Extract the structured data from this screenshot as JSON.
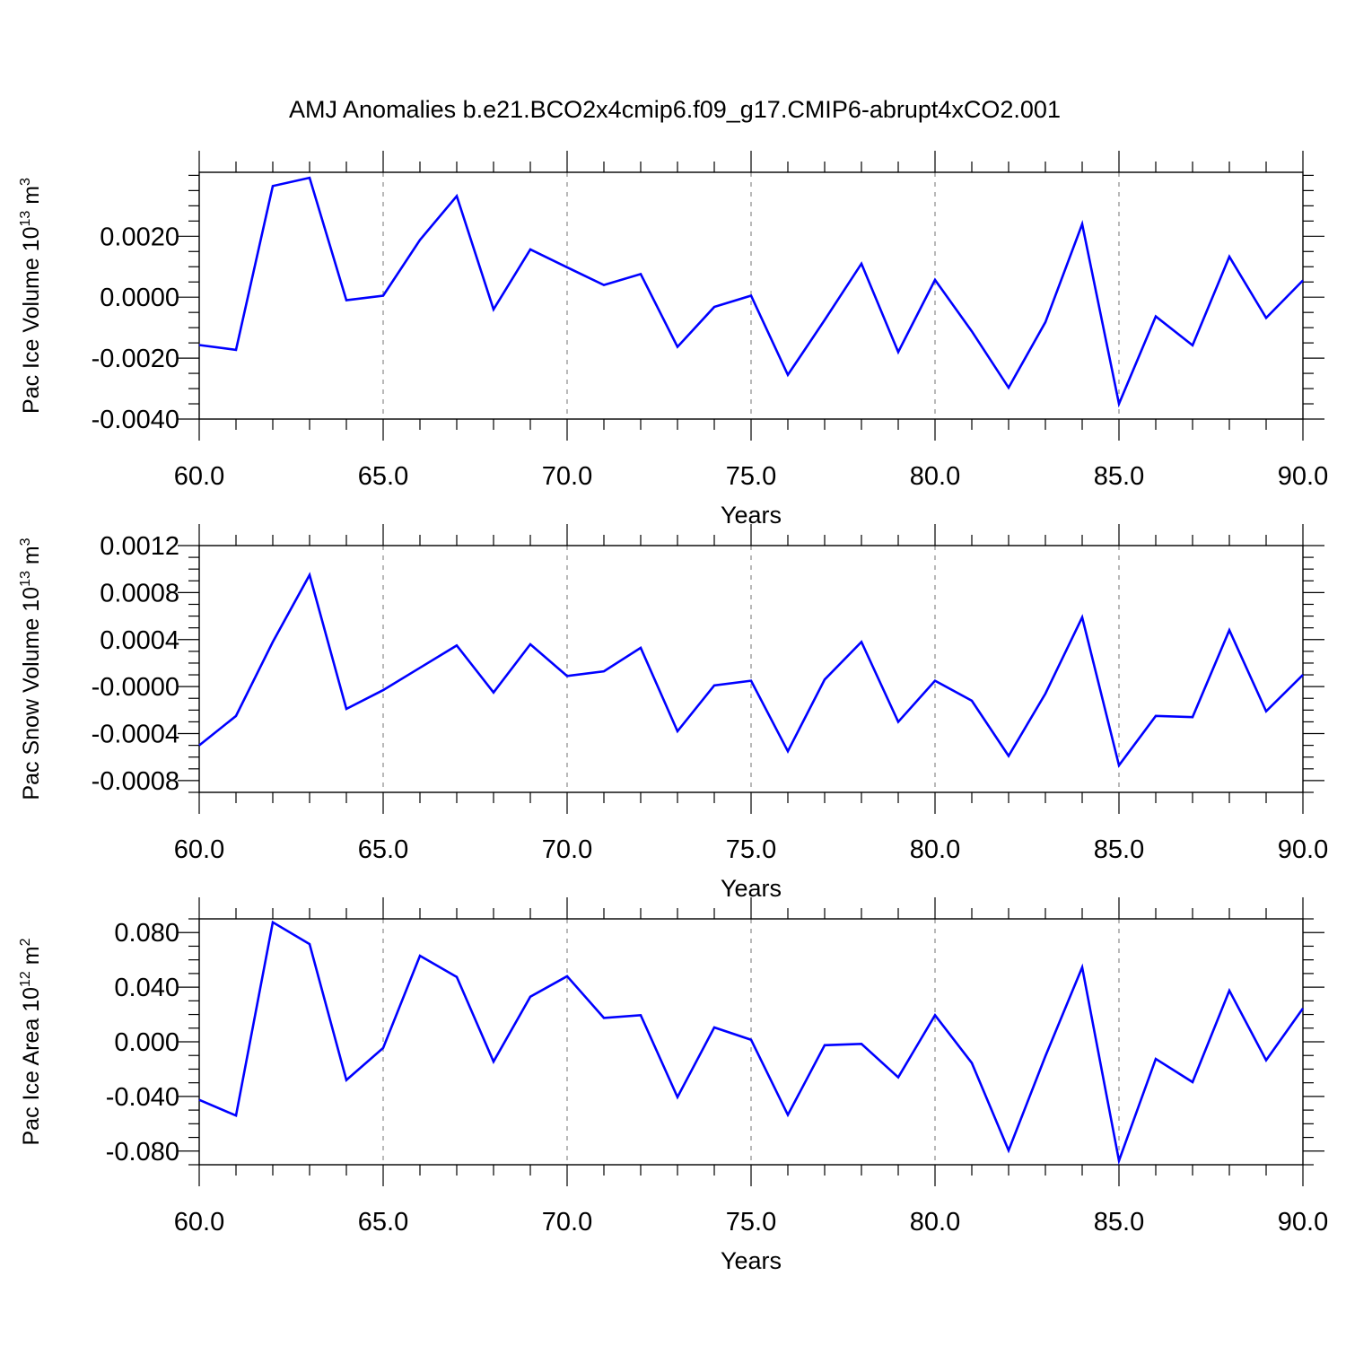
{
  "figure": {
    "title": "AMJ Anomalies b.e21.BCO2x4cmip6.f09_g17.CMIP6-abrupt4xCO2.001"
  },
  "chart_data": [
    {
      "type": "line",
      "ylabel": {
        "main": "Pac Ice Volume 10",
        "exp": "13",
        "unit": " m",
        "unit_exp": "3"
      },
      "xlabel": "Years",
      "xlim": [
        60,
        90
      ],
      "ylim": [
        -0.004,
        0.0041
      ],
      "x_ticks": [
        "60.0",
        "65.0",
        "70.0",
        "75.0",
        "80.0",
        "85.0",
        "90.0"
      ],
      "y_ticks": [
        {
          "v": 0.002,
          "label": "0.0020"
        },
        {
          "v": 0.0,
          "label": "0.0000"
        },
        {
          "v": -0.002,
          "label": "-0.0020"
        },
        {
          "v": -0.004,
          "label": "-0.0040"
        }
      ],
      "grid": "dashed vertical at major x ticks",
      "color": "#0000ff",
      "x": [
        60,
        61,
        62,
        63,
        64,
        65,
        66,
        67,
        68,
        69,
        70,
        71,
        72,
        73,
        74,
        75,
        76,
        77,
        78,
        79,
        80,
        81,
        82,
        83,
        84,
        85,
        86,
        87,
        88,
        89,
        90
      ],
      "values": [
        -0.00157,
        -0.00173,
        0.00365,
        0.00392,
        -0.0001,
        5e-05,
        0.00188,
        0.00332,
        -0.0004,
        0.00157,
        0.00098,
        0.0004,
        0.00076,
        -0.00163,
        -0.00032,
        5e-05,
        -0.00255,
        -0.00075,
        0.0011,
        -0.0018,
        0.00057,
        -0.00112,
        -0.00297,
        -0.00082,
        0.0024,
        -0.0035,
        -0.00063,
        -0.00158,
        0.00133,
        -0.00068,
        0.00055
      ]
    },
    {
      "type": "line",
      "ylabel": {
        "main": "Pac Snow Volume 10",
        "exp": "13",
        "unit": " m",
        "unit_exp": "3"
      },
      "xlabel": "Years",
      "xlim": [
        60,
        90
      ],
      "ylim": [
        -0.0009,
        0.0012
      ],
      "x_ticks": [
        "60.0",
        "65.0",
        "70.0",
        "75.0",
        "80.0",
        "85.0",
        "90.0"
      ],
      "y_ticks": [
        {
          "v": 0.0012,
          "label": "0.0012"
        },
        {
          "v": 0.0008,
          "label": "0.0008"
        },
        {
          "v": 0.0004,
          "label": "0.0004"
        },
        {
          "v": 0.0,
          "label": "-0.0000"
        },
        {
          "v": -0.0004,
          "label": "-0.0004"
        },
        {
          "v": -0.0008,
          "label": "-0.0008"
        }
      ],
      "grid": "dashed vertical at major x ticks",
      "color": "#0000ff",
      "x": [
        60,
        61,
        62,
        63,
        64,
        65,
        66,
        67,
        68,
        69,
        70,
        71,
        72,
        73,
        74,
        75,
        76,
        77,
        78,
        79,
        80,
        81,
        82,
        83,
        84,
        85,
        86,
        87,
        88,
        89,
        90
      ],
      "values": [
        -0.0005,
        -0.00025,
        0.00038,
        0.00095,
        -0.00019,
        -3e-05,
        0.00016,
        0.00035,
        -5e-05,
        0.00036,
        9e-05,
        0.00013,
        0.00033,
        -0.00038,
        1e-05,
        5e-05,
        -0.00055,
        6e-05,
        0.00038,
        -0.0003,
        5e-05,
        -0.00012,
        -0.00059,
        -6e-05,
        0.00059,
        -0.00067,
        -0.00025,
        -0.00026,
        0.00048,
        -0.00021,
        0.0001
      ]
    },
    {
      "type": "line",
      "ylabel": {
        "main": "Pac Ice Area 10",
        "exp": "12",
        "unit": " m",
        "unit_exp": "2"
      },
      "xlabel": "Years",
      "xlim": [
        60,
        90
      ],
      "ylim": [
        -0.09,
        0.09
      ],
      "x_ticks": [
        "60.0",
        "65.0",
        "70.0",
        "75.0",
        "80.0",
        "85.0",
        "90.0"
      ],
      "y_ticks": [
        {
          "v": 0.08,
          "label": "0.080"
        },
        {
          "v": 0.04,
          "label": "0.040"
        },
        {
          "v": 0.0,
          "label": "0.000"
        },
        {
          "v": -0.04,
          "label": "-0.040"
        },
        {
          "v": -0.08,
          "label": "-0.080"
        }
      ],
      "grid": "dashed vertical at major x ticks",
      "color": "#0000ff",
      "x": [
        60,
        61,
        62,
        63,
        64,
        65,
        66,
        67,
        68,
        69,
        70,
        71,
        72,
        73,
        74,
        75,
        76,
        77,
        78,
        79,
        80,
        81,
        82,
        83,
        84,
        85,
        86,
        87,
        88,
        89,
        90
      ],
      "values": [
        -0.0425,
        -0.054,
        0.0875,
        0.0715,
        -0.028,
        -0.0045,
        0.063,
        0.0475,
        -0.0145,
        0.033,
        0.048,
        0.0175,
        0.0195,
        -0.0405,
        0.0105,
        0.0015,
        -0.0535,
        -0.0025,
        -0.0015,
        -0.026,
        0.0195,
        -0.0155,
        -0.0795,
        -0.0105,
        0.0545,
        -0.087,
        -0.0125,
        -0.0295,
        0.0375,
        -0.0135,
        0.0245
      ]
    }
  ]
}
